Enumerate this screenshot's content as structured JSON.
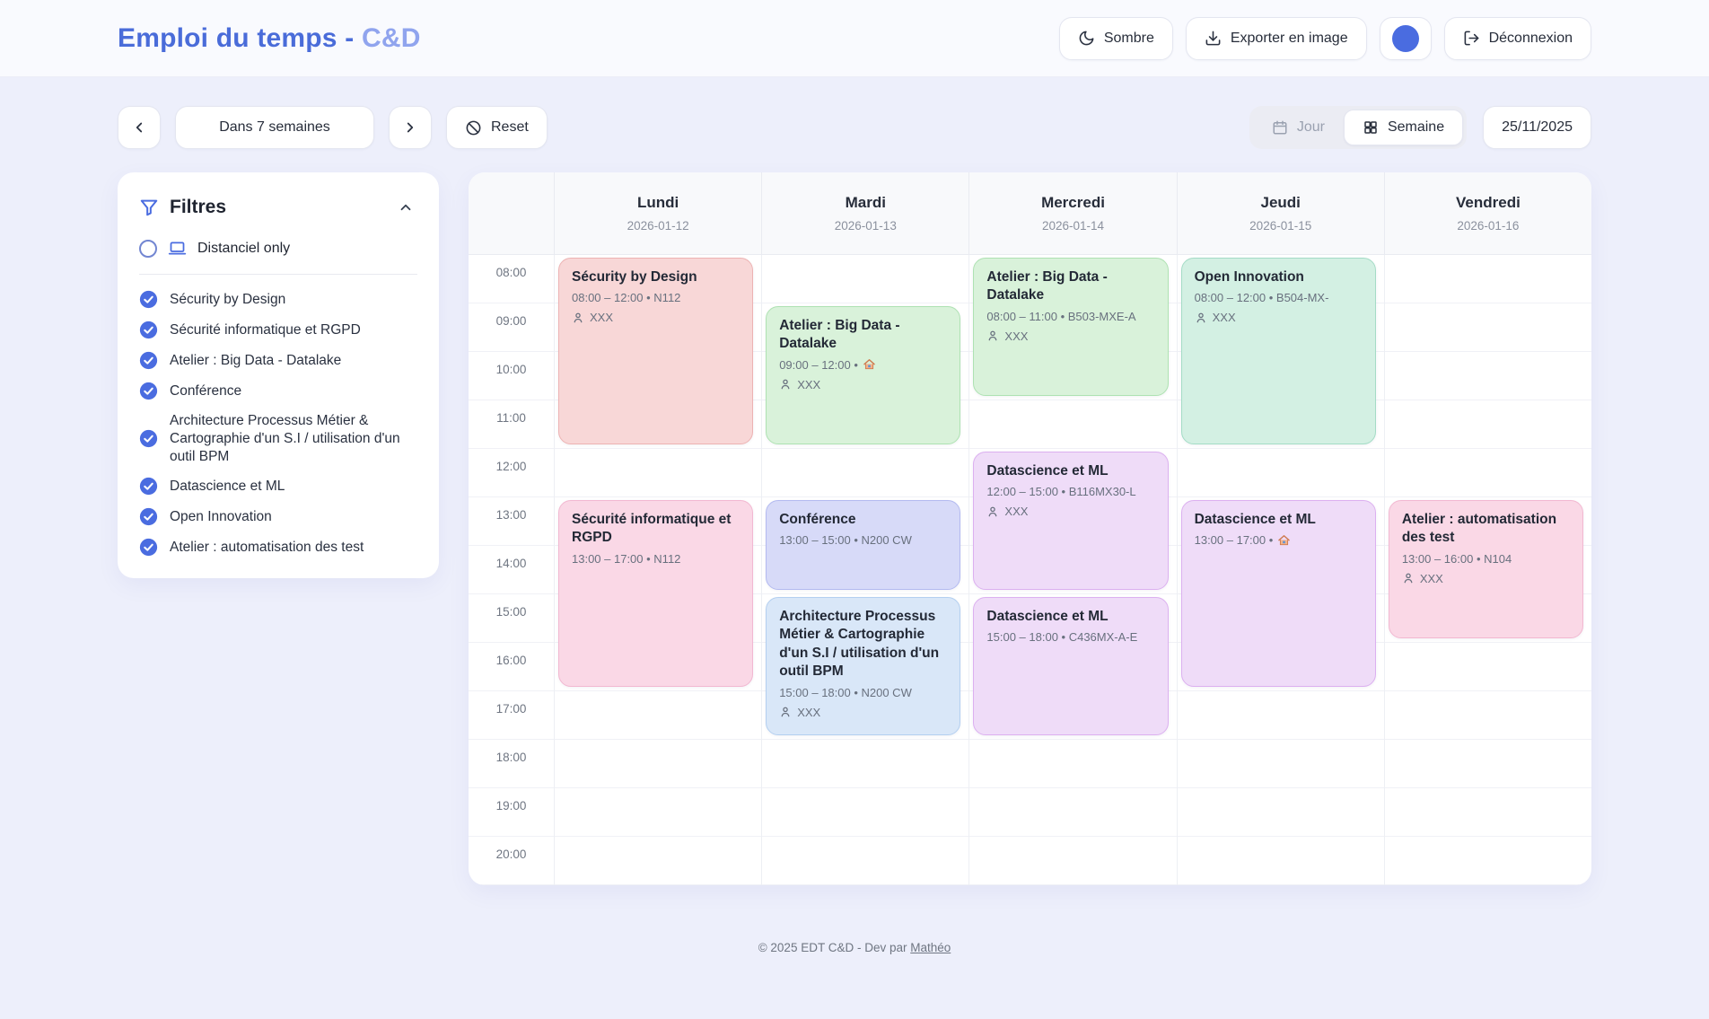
{
  "header": {
    "title_main": "Emploi du temps -",
    "title_accent": "C&D",
    "theme_button": "Sombre",
    "export_button": "Exporter en image",
    "logout_button": "Déconnexion"
  },
  "toolbar": {
    "range_label": "Dans 7 semaines",
    "reset_button": "Reset",
    "view_day": "Jour",
    "view_week": "Semaine",
    "active_view": "Semaine",
    "date_button": "25/11/2025"
  },
  "filters": {
    "title": "Filtres",
    "distanciel_label": "Distanciel only",
    "items": [
      {
        "label": "Sécurity by Design",
        "checked": true
      },
      {
        "label": "Sécurité informatique et RGPD",
        "checked": true
      },
      {
        "label": "Atelier : Big Data - Datalake",
        "checked": true
      },
      {
        "label": "Conférence",
        "checked": true
      },
      {
        "label": "Architecture Processus Métier & Cartographie d'un S.I / utilisation d'un outil BPM",
        "checked": true
      },
      {
        "label": "Datascience et ML",
        "checked": true
      },
      {
        "label": "Open Innovation",
        "checked": true
      },
      {
        "label": "Atelier : automatisation des test",
        "checked": true
      }
    ]
  },
  "calendar": {
    "days": [
      {
        "name": "Lundi",
        "date": "2026-01-12"
      },
      {
        "name": "Mardi",
        "date": "2026-01-13"
      },
      {
        "name": "Mercredi",
        "date": "2026-01-14"
      },
      {
        "name": "Jeudi",
        "date": "2026-01-15"
      },
      {
        "name": "Vendredi",
        "date": "2026-01-16"
      }
    ],
    "hours": [
      "08:00",
      "09:00",
      "10:00",
      "11:00",
      "12:00",
      "13:00",
      "14:00",
      "15:00",
      "16:00",
      "17:00",
      "18:00",
      "19:00",
      "20:00"
    ],
    "events": [
      {
        "day": 0,
        "start": 8,
        "end": 12,
        "title": "Sécurity by Design",
        "time_label": "08:00 – 12:00 • N112",
        "attendee": "XXX",
        "color": "red"
      },
      {
        "day": 0,
        "start": 13,
        "end": 17,
        "title": "Sécurité informatique et RGPD",
        "time_label": "13:00 – 17:00 • N112",
        "attendee": null,
        "color": "pink"
      },
      {
        "day": 1,
        "start": 9,
        "end": 12,
        "title": "Atelier : Big Data - Datalake",
        "time_label": "09:00 – 12:00 • 🏠",
        "attendee": "XXX",
        "color": "green"
      },
      {
        "day": 1,
        "start": 13,
        "end": 15,
        "title": "Conférence",
        "time_label": "13:00 – 15:00 • N200 CW",
        "attendee": null,
        "color": "indigo"
      },
      {
        "day": 1,
        "start": 15,
        "end": 18,
        "title": "Architecture Processus Métier & Cartographie d'un S.I / utilisation d'un outil BPM",
        "time_label": "15:00 – 18:00 • N200 CW",
        "attendee": "XXX",
        "color": "blue"
      },
      {
        "day": 2,
        "start": 8,
        "end": 11,
        "title": "Atelier : Big Data - Datalake",
        "time_label": "08:00 – 11:00 • B503-MXE-A",
        "attendee": "XXX",
        "color": "green"
      },
      {
        "day": 2,
        "start": 12,
        "end": 15,
        "title": "Datascience et ML",
        "time_label": "12:00 – 15:00 • B116MX30-L",
        "attendee": "XXX",
        "color": "purple"
      },
      {
        "day": 2,
        "start": 15,
        "end": 18,
        "title": "Datascience et ML",
        "time_label": "15:00 – 18:00 • C436MX-A-E",
        "attendee": null,
        "color": "purple"
      },
      {
        "day": 3,
        "start": 8,
        "end": 12,
        "title": "Open Innovation",
        "time_label": "08:00 – 12:00 • B504-MX-",
        "attendee": "XXX",
        "color": "mint"
      },
      {
        "day": 3,
        "start": 13,
        "end": 17,
        "title": "Datascience et ML",
        "time_label": "13:00 – 17:00 • 🏠",
        "attendee": null,
        "color": "purple"
      },
      {
        "day": 4,
        "start": 13,
        "end": 16,
        "title": "Atelier : automatisation des test",
        "time_label": "13:00 – 16:00 • N104",
        "attendee": "XXX",
        "color": "pink"
      }
    ],
    "event_colors": {
      "red": {
        "bg": "#f8d7d7",
        "border": "#edb3b3"
      },
      "pink": {
        "bg": "#fad8e6",
        "border": "#f2b8d1"
      },
      "green": {
        "bg": "#d9f2da",
        "border": "#aee2b2"
      },
      "mint": {
        "bg": "#d3f0e3",
        "border": "#a4dcc6"
      },
      "indigo": {
        "bg": "#d7daf8",
        "border": "#b3baf0"
      },
      "blue": {
        "bg": "#d9e7f8",
        "border": "#b3cff0"
      },
      "purple": {
        "bg": "#efdcf8",
        "border": "#dcb0f0"
      }
    },
    "accent": "#4a6cd9"
  },
  "footer": {
    "text": "© 2025 EDT C&D - Dev par ",
    "link_label": "Mathéo"
  }
}
